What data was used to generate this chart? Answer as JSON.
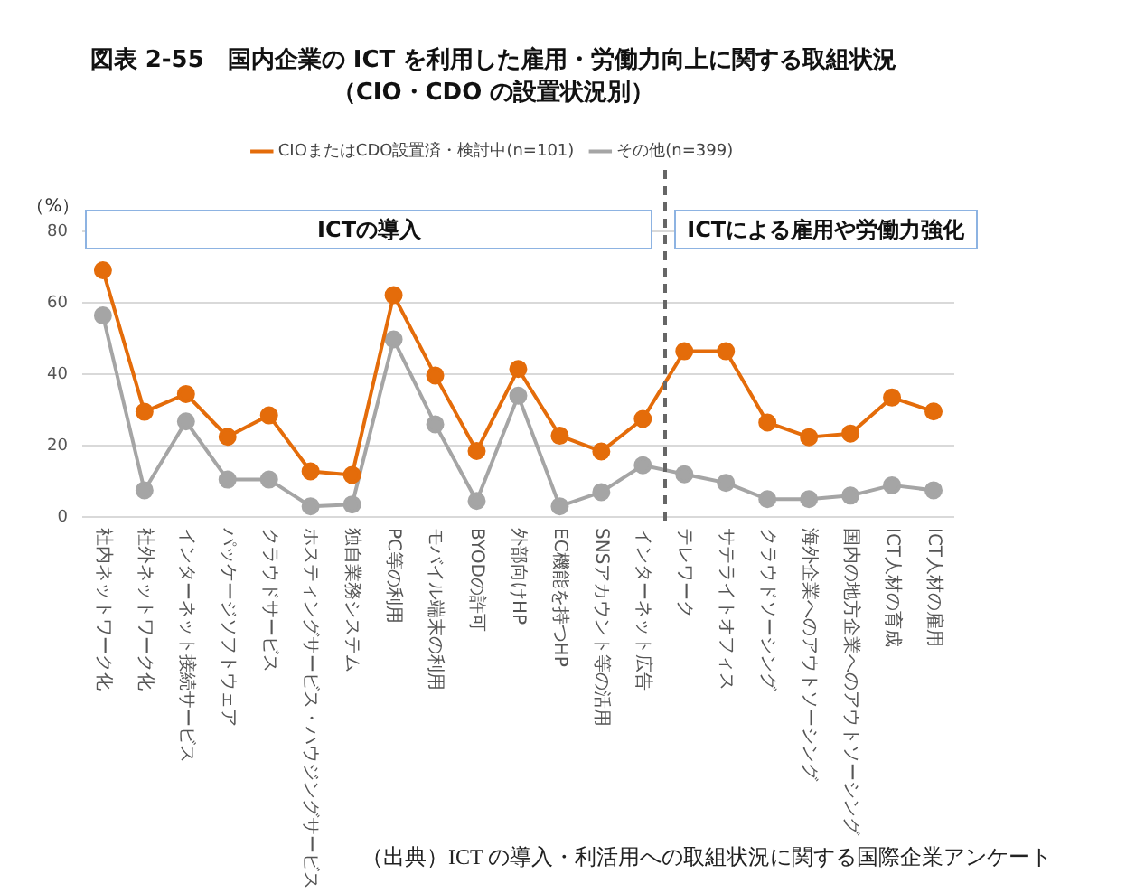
{
  "chart_data": {
    "type": "line",
    "title": "図表 2-55　国内企業の ICT を利用した雇用・労働力向上に関する取組状況",
    "subtitle": "（CIO・CDO の設置状況別）",
    "ylabel": "（%）",
    "categories": [
      "社内ネットワーク化",
      "社外ネットワーク化",
      "インターネット接続サービス",
      "パッケージソフトウェア",
      "クラウドサービス",
      "ホスティングサービス・ハウジングサービス",
      "独自業務システム",
      "PC等の利用",
      "モバイル端末の利用",
      "BYODの許可",
      "外部向けHP",
      "EC機能を持つHP",
      "SNSアカウント等の活用",
      "インターネット広告",
      "テレワーク",
      "サテライトオフィス",
      "クラウドソーシング",
      "海外企業へのアウトソーシング",
      "国内の地方企業へのアウトソーシング",
      "ICT人材の育成",
      "ICT人材の雇用"
    ],
    "series": [
      {
        "name": "CIOまたはCDO設置済・検討中(n=101)",
        "color": "#e46c0a",
        "values": [
          69.2,
          29.5,
          34.5,
          22.5,
          28.5,
          12.8,
          11.8,
          62.2,
          39.7,
          18.5,
          41.5,
          22.8,
          18.4,
          27.5,
          46.5,
          46.5,
          26.5,
          22.4,
          23.4,
          33.5,
          29.6
        ]
      },
      {
        "name": "その他(n=399)",
        "color": "#a5a5a5",
        "values": [
          56.5,
          7.5,
          26.8,
          10.5,
          10.5,
          3,
          3.5,
          49.8,
          26,
          4.5,
          34,
          3,
          7,
          14.5,
          12,
          9.6,
          5,
          5,
          6,
          8.9,
          7.5
        ]
      }
    ],
    "ylim": [
      0,
      80
    ],
    "yticks": [
      0,
      20,
      40,
      60,
      80
    ],
    "grid": "y",
    "legend": "top",
    "marker": "circle",
    "line_style": "solid",
    "annotations": [
      "ICTの導入",
      "ICTによる雇用や労働力強化",
      "（出典）ICT の導入・利活用への取組状況に関する国際企業アンケート"
    ]
  }
}
